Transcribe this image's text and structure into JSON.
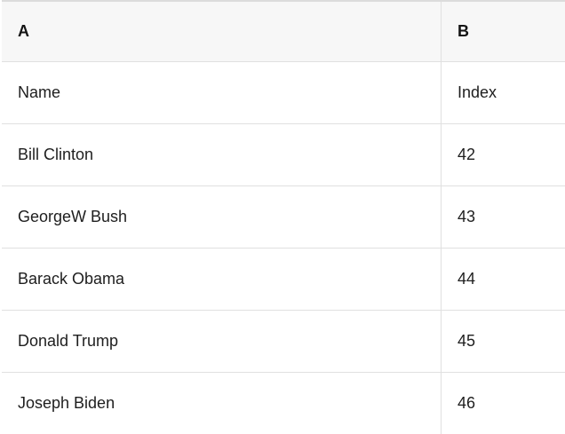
{
  "table": {
    "columns": [
      {
        "label": "A"
      },
      {
        "label": "B"
      }
    ],
    "rows": [
      {
        "a": "Name",
        "b": "Index"
      },
      {
        "a": "Bill Clinton",
        "b": "42"
      },
      {
        "a": "GeorgeW Bush",
        "b": "43"
      },
      {
        "a": "Barack Obama",
        "b": "44"
      },
      {
        "a": "Donald Trump",
        "b": "45"
      },
      {
        "a": "Joseph Biden",
        "b": "46"
      }
    ]
  },
  "colors": {
    "header_bg": "#f7f7f7",
    "border": "#e0e0e0",
    "text": "#1e1e1e"
  }
}
